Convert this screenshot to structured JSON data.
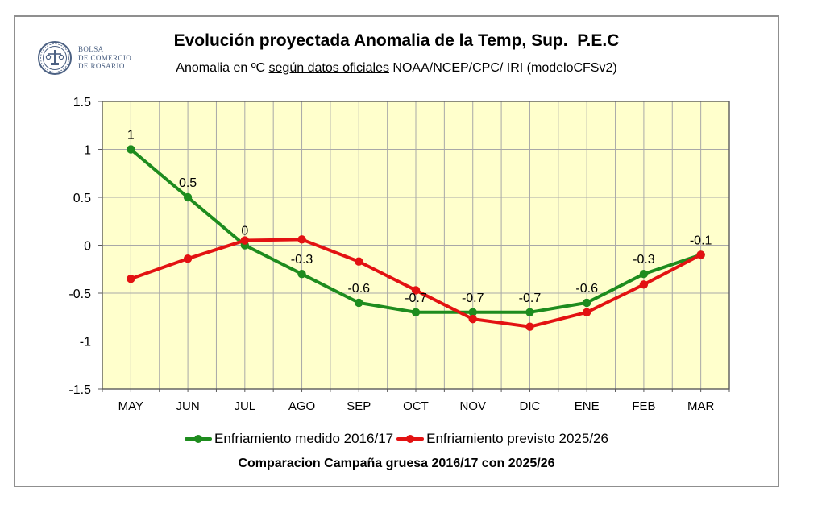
{
  "header": {
    "logo": {
      "org_line1": "BOLSA",
      "org_line2": "DE COMERCIO",
      "org_line3": "DE ROSARIO"
    },
    "title": "Evolución proyectada Anomalia de la Temp, Sup.  P.E.C",
    "subtitle": {
      "prefix": "Anomalia en ºC ",
      "underlined": "según datos oficiales",
      "suffix": " NOAA/NCEP/CPC/ IRI (modeloCFSv2)"
    }
  },
  "chart_data": {
    "type": "line",
    "categories": [
      "MAY",
      "JUN",
      "JUL",
      "AGO",
      "SEP",
      "OCT",
      "NOV",
      "DIC",
      "ENE",
      "FEB",
      "MAR"
    ],
    "series": [
      {
        "name": "Enfriamiento medido 2016/17",
        "color": "#1e8c1e",
        "values": [
          1,
          0.5,
          0,
          -0.3,
          -0.6,
          -0.7,
          -0.7,
          -0.7,
          -0.6,
          -0.3,
          -0.1
        ],
        "show_labels": true
      },
      {
        "name": "Enfriamiento previsto 2025/26",
        "color": "#e31212",
        "values": [
          -0.35,
          -0.14,
          0.05,
          0.06,
          -0.17,
          -0.47,
          -0.77,
          -0.85,
          -0.7,
          -0.41,
          -0.1
        ],
        "show_labels": false
      }
    ],
    "data_labels": [
      "1",
      "0.5",
      "0",
      "-0.3",
      "-0.6",
      "-0.7",
      "-0.7",
      "-0.7",
      "-0.6",
      "-0.3",
      "-0.1"
    ],
    "ylim": [
      -1.5,
      1.5
    ],
    "ytick_step": 0.5,
    "yticks": [
      "1.5",
      "1",
      "0.5",
      "0",
      "-0.5",
      "-1",
      "-1.5"
    ],
    "plot_bg": "#ffffcc",
    "grid_color": "#a8a8a8",
    "axis_color": "#5a5a5a",
    "grid": true,
    "legend_position": "bottom"
  },
  "footer": {
    "caption": "Comparacion Campaña gruesa 2016/17 con 2025/26"
  }
}
